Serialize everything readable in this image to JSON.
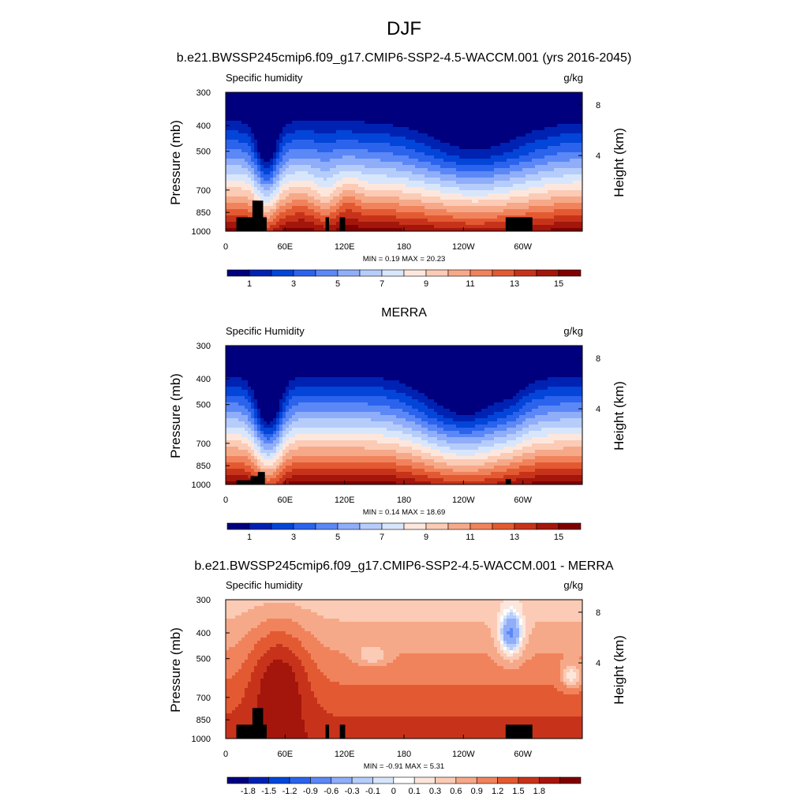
{
  "figure": {
    "title": "DJF"
  },
  "colors": {
    "moisture_levels": [
      "#00007f",
      "#0022b2",
      "#0345d8",
      "#2b63ec",
      "#5b88f6",
      "#8fadf9",
      "#b6cdfb",
      "#d8e6fc",
      "#fde7dd",
      "#fbcbb6",
      "#f6a988",
      "#f1835c",
      "#e35a32",
      "#c7331a",
      "#a4160c",
      "#800000"
    ],
    "difference_levels": [
      "#00007f",
      "#0022b2",
      "#0345d8",
      "#2b63ec",
      "#5b88f6",
      "#8fadf9",
      "#b6cdfb",
      "#d8e6fc",
      "#ffffff",
      "#fde7dd",
      "#fbcbb6",
      "#f6a988",
      "#f1835c",
      "#e35a32",
      "#c7331a",
      "#a4160c",
      "#800000"
    ],
    "terrain": "#000000"
  },
  "chart_data": [
    {
      "type": "heatmap",
      "title": "b.e21.BWSSP245cmip6.f09_g17.CMIP6-SSP2-4.5-WACCM.001 (yrs 2016-2045)",
      "left_label": "Specific humidity",
      "right_label": "g/kg",
      "ylabel": "Pressure (mb)",
      "ylabel_right": "Height (km)",
      "x_ticks": [
        "0",
        "60E",
        "120E",
        "180",
        "120W",
        "60W"
      ],
      "y_ticks": [
        "300",
        "400",
        "500",
        "700",
        "850",
        "1000"
      ],
      "y2_ticks": [
        "8",
        "4"
      ],
      "stats": "MIN =   0.19  MAX =  20.23",
      "colorbar_labels": [
        "1",
        "3",
        "5",
        "7",
        "9",
        "11",
        "13",
        "15"
      ],
      "colorbar_levels": [
        0,
        1,
        2,
        3,
        4,
        5,
        6,
        7,
        8,
        9,
        10,
        11,
        12,
        13,
        14,
        15
      ],
      "min": 0.19,
      "max": 20.23
    },
    {
      "type": "heatmap",
      "title": "MERRA",
      "left_label": "Specific Humidity",
      "right_label": "g/kg",
      "ylabel": "Pressure (mb)",
      "ylabel_right": "Height (km)",
      "x_ticks": [
        "0",
        "60E",
        "120E",
        "180",
        "120W",
        "60W"
      ],
      "y_ticks": [
        "300",
        "400",
        "500",
        "700",
        "850",
        "1000"
      ],
      "y2_ticks": [
        "8",
        "4"
      ],
      "stats": "MIN =   0.14  MAX =  18.69",
      "colorbar_labels": [
        "1",
        "3",
        "5",
        "7",
        "9",
        "11",
        "13",
        "15"
      ],
      "colorbar_levels": [
        0,
        1,
        2,
        3,
        4,
        5,
        6,
        7,
        8,
        9,
        10,
        11,
        12,
        13,
        14,
        15
      ],
      "min": 0.14,
      "max": 18.69
    },
    {
      "type": "heatmap",
      "title": "b.e21.BWSSP245cmip6.f09_g17.CMIP6-SSP2-4.5-WACCM.001 - MERRA",
      "left_label": "Specific humidity",
      "right_label": "g/kg",
      "ylabel": "Pressure (mb)",
      "ylabel_right": "Height (km)",
      "x_ticks": [
        "0",
        "60E",
        "120E",
        "180",
        "120W",
        "60W"
      ],
      "y_ticks": [
        "300",
        "400",
        "500",
        "700",
        "850",
        "1000"
      ],
      "y2_ticks": [
        "8",
        "4"
      ],
      "stats": "MIN =  -0.91  MAX =   5.31",
      "colorbar_labels": [
        "-1.8",
        "-1.5",
        "-1.2",
        "-0.9",
        "-0.6",
        "-0.3",
        "-0.1",
        "0",
        "0.1",
        "0.3",
        "0.6",
        "0.9",
        "1.2",
        "1.5",
        "1.8"
      ],
      "colorbar_levels": [
        -1.8,
        -1.5,
        -1.2,
        -0.9,
        -0.6,
        -0.3,
        -0.1,
        0,
        0.1,
        0.3,
        0.6,
        0.9,
        1.2,
        1.5,
        1.8
      ],
      "min": -0.91,
      "max": 5.31
    }
  ]
}
